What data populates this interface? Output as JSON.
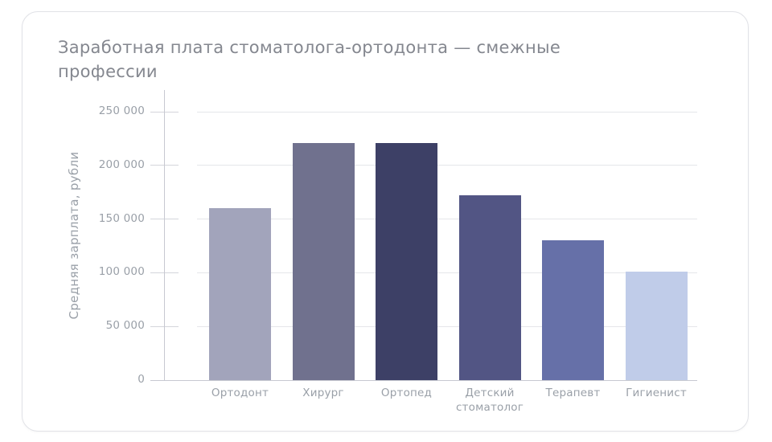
{
  "chart_data": {
    "type": "bar",
    "title": "Заработная плата стоматолога-ортодонта — смежные профессии",
    "xlabel": "",
    "ylabel": "Средняя зарплата, рубли",
    "categories": [
      "Ортодонт",
      "Хирург",
      "Ортопед",
      "Детский стоматолог",
      "Терапевт",
      "Гигиенист"
    ],
    "values": [
      160000,
      221000,
      221000,
      172000,
      130000,
      101000
    ],
    "bar_colors": [
      "#a2a4bb",
      "#70718e",
      "#3d4066",
      "#525584",
      "#6670a8",
      "#c0cce9"
    ],
    "ylim": [
      0,
      250000
    ],
    "yticks": [
      0,
      50000,
      100000,
      150000,
      200000,
      250000
    ],
    "ytick_labels": [
      "0",
      "50 000",
      "100 000",
      "150 000",
      "200 000",
      "250 000"
    ],
    "grid": true,
    "legend": false
  },
  "colors": {
    "card_background": "#ffffff",
    "card_border": "#e1e2e7",
    "title_text": "#84878f",
    "axis_text": "#9aa0a8",
    "axis_line": "#c7c9d1",
    "gridline": "#e5e6ea"
  }
}
